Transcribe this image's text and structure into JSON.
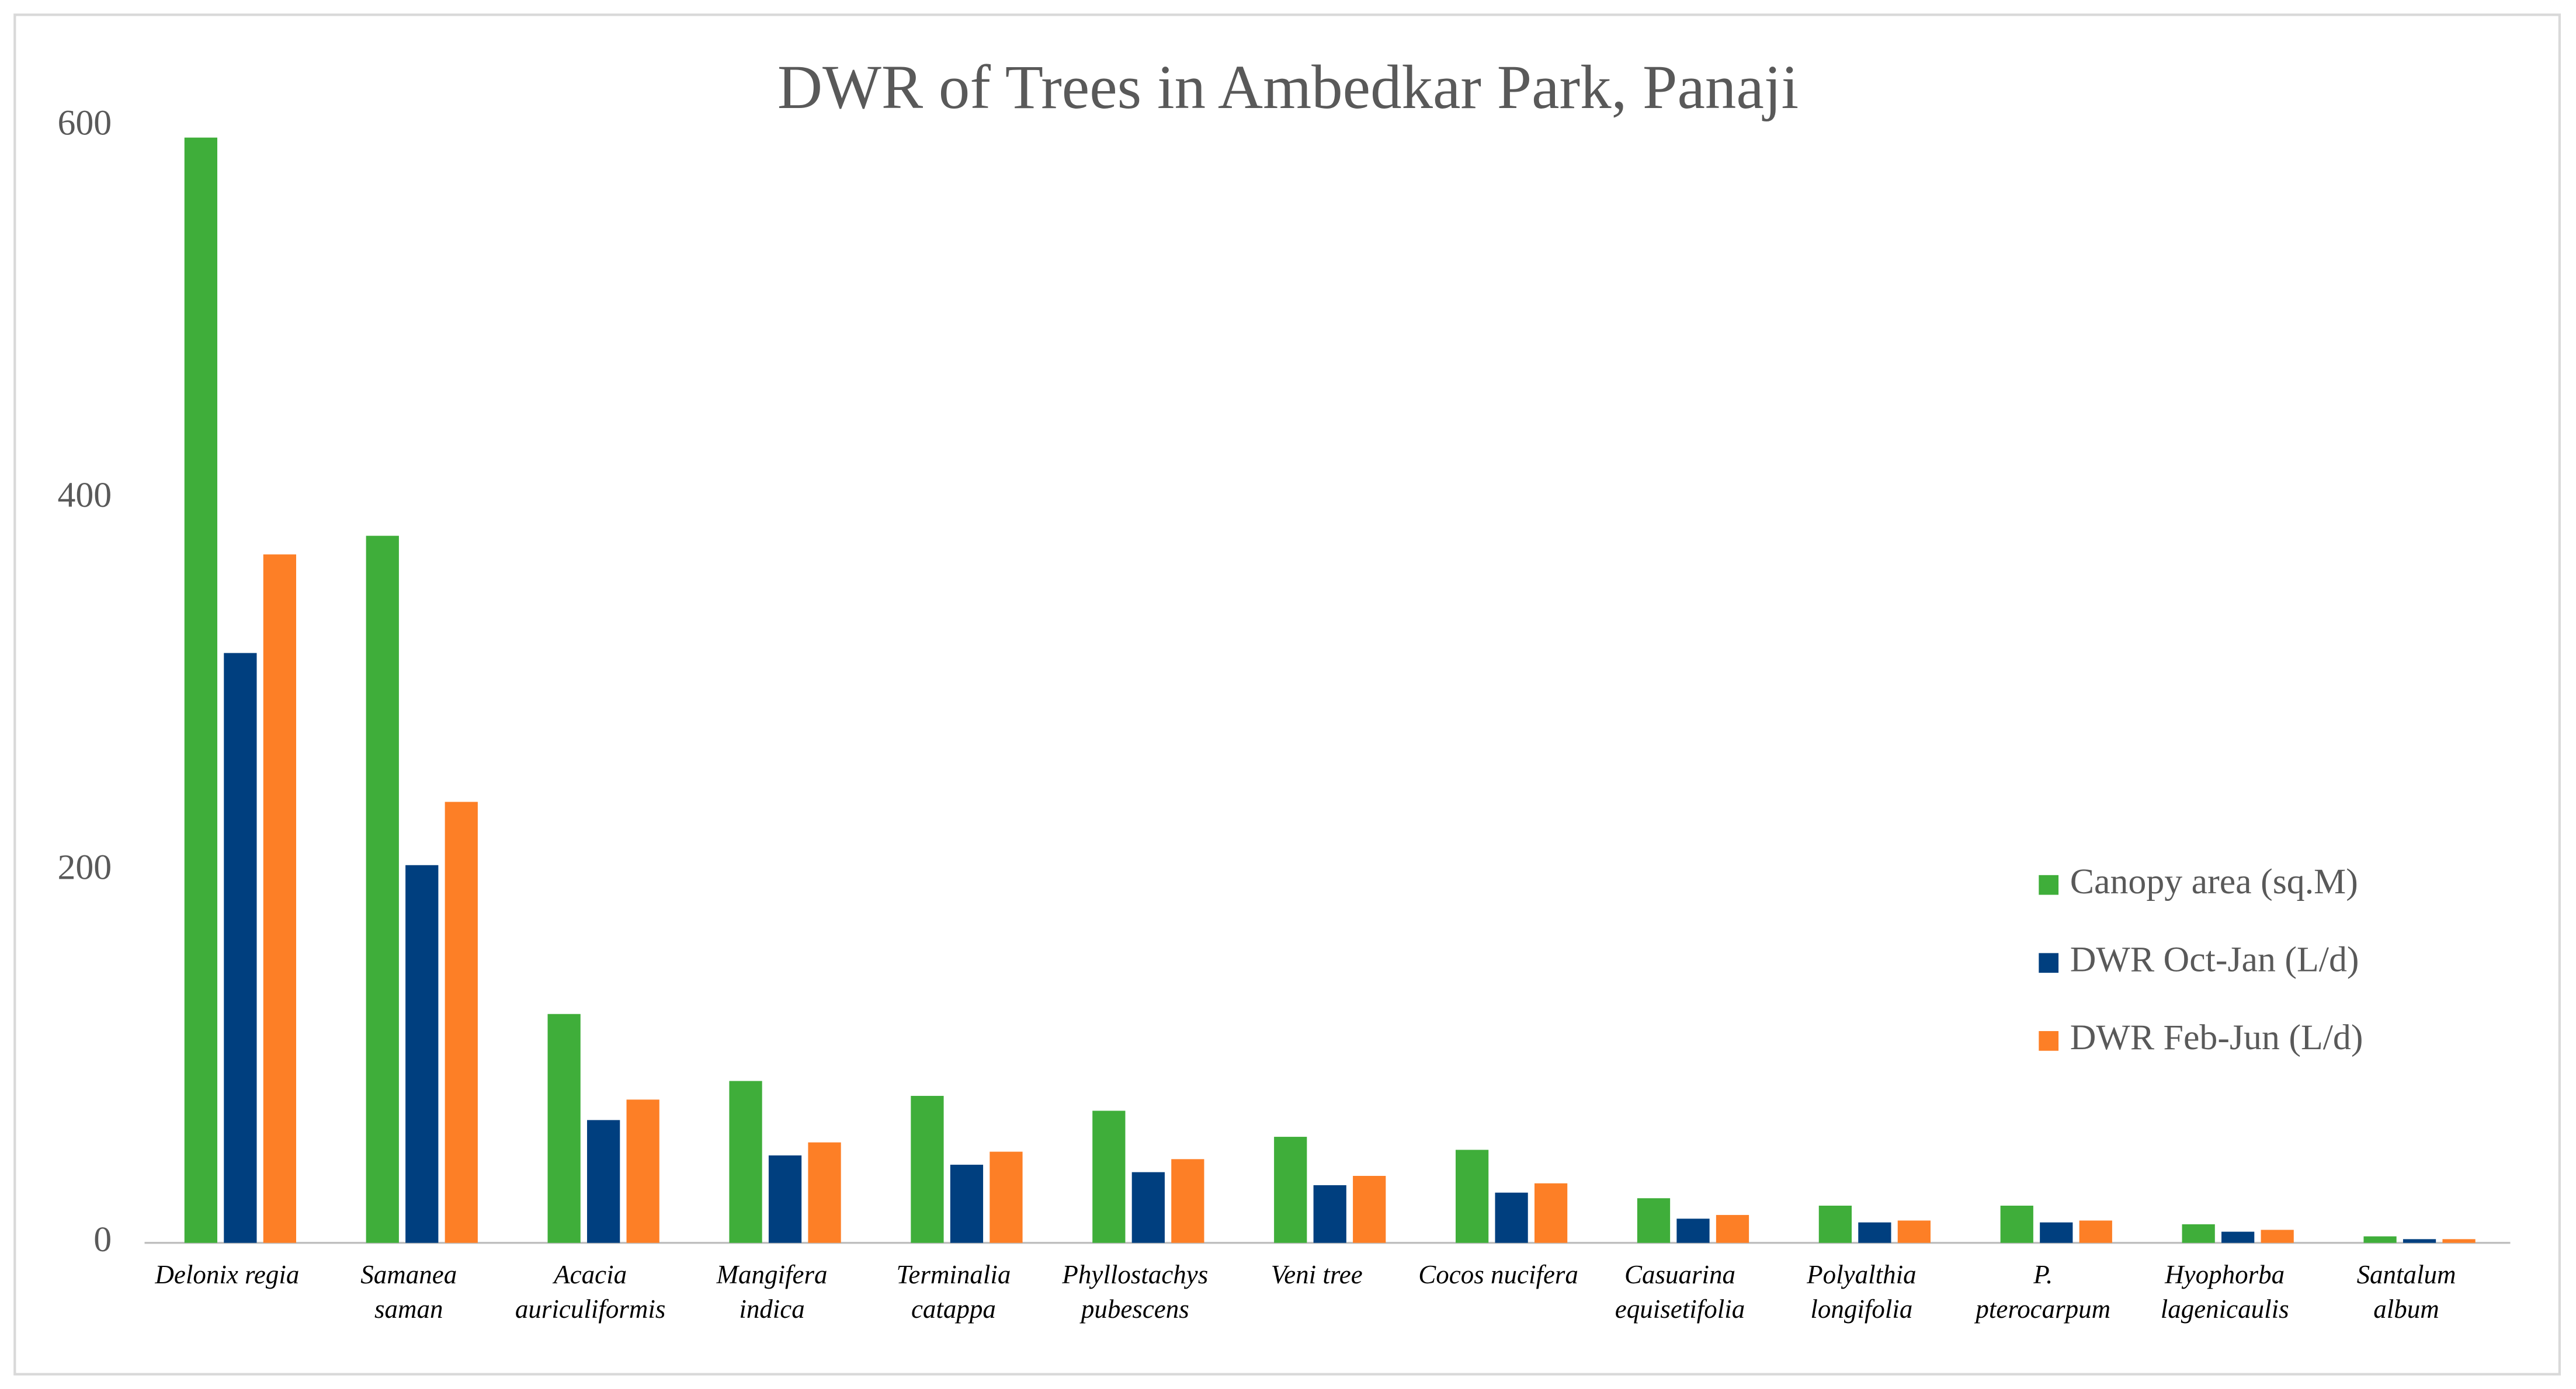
{
  "chart_data": {
    "type": "bar",
    "title": "DWR of Trees in Ambedkar Park, Panaji",
    "categories": [
      "Delonix regia",
      "Samanea\nsaman",
      "Acacia\nauriculiformis",
      "Mangifera\nindica",
      "Terminalia\ncatappa",
      "Phyllostachys\npubescens",
      "Veni tree",
      "Cocos nucifera",
      "Casuarina\nequisetifolia",
      "Polyalthia\nlongifolia",
      "P.\npterocarpum",
      "Hyophorba\nlagenicaulis",
      "Santalum\nalbum"
    ],
    "series": [
      {
        "name": "Canopy area (sq.M)",
        "color": "#3fae3a",
        "values": [
          594,
          380,
          123,
          87,
          79,
          71,
          57,
          50,
          24,
          20,
          20,
          10,
          3.5
        ]
      },
      {
        "name": "DWR Oct-Jan (L/d)",
        "color": "#003f7f",
        "values": [
          317,
          203,
          66,
          47,
          42,
          38,
          31,
          27,
          13,
          11,
          11,
          6,
          2
        ]
      },
      {
        "name": "DWR Feb-Jun (L/d)",
        "color": "#fd7f26",
        "values": [
          370,
          237,
          77,
          54,
          49,
          45,
          36,
          32,
          15,
          12,
          12,
          7,
          2
        ]
      }
    ],
    "ylim": [
      0,
      600
    ],
    "yticks": [
      0,
      200,
      400,
      600
    ],
    "grid": false,
    "legend": "right"
  }
}
